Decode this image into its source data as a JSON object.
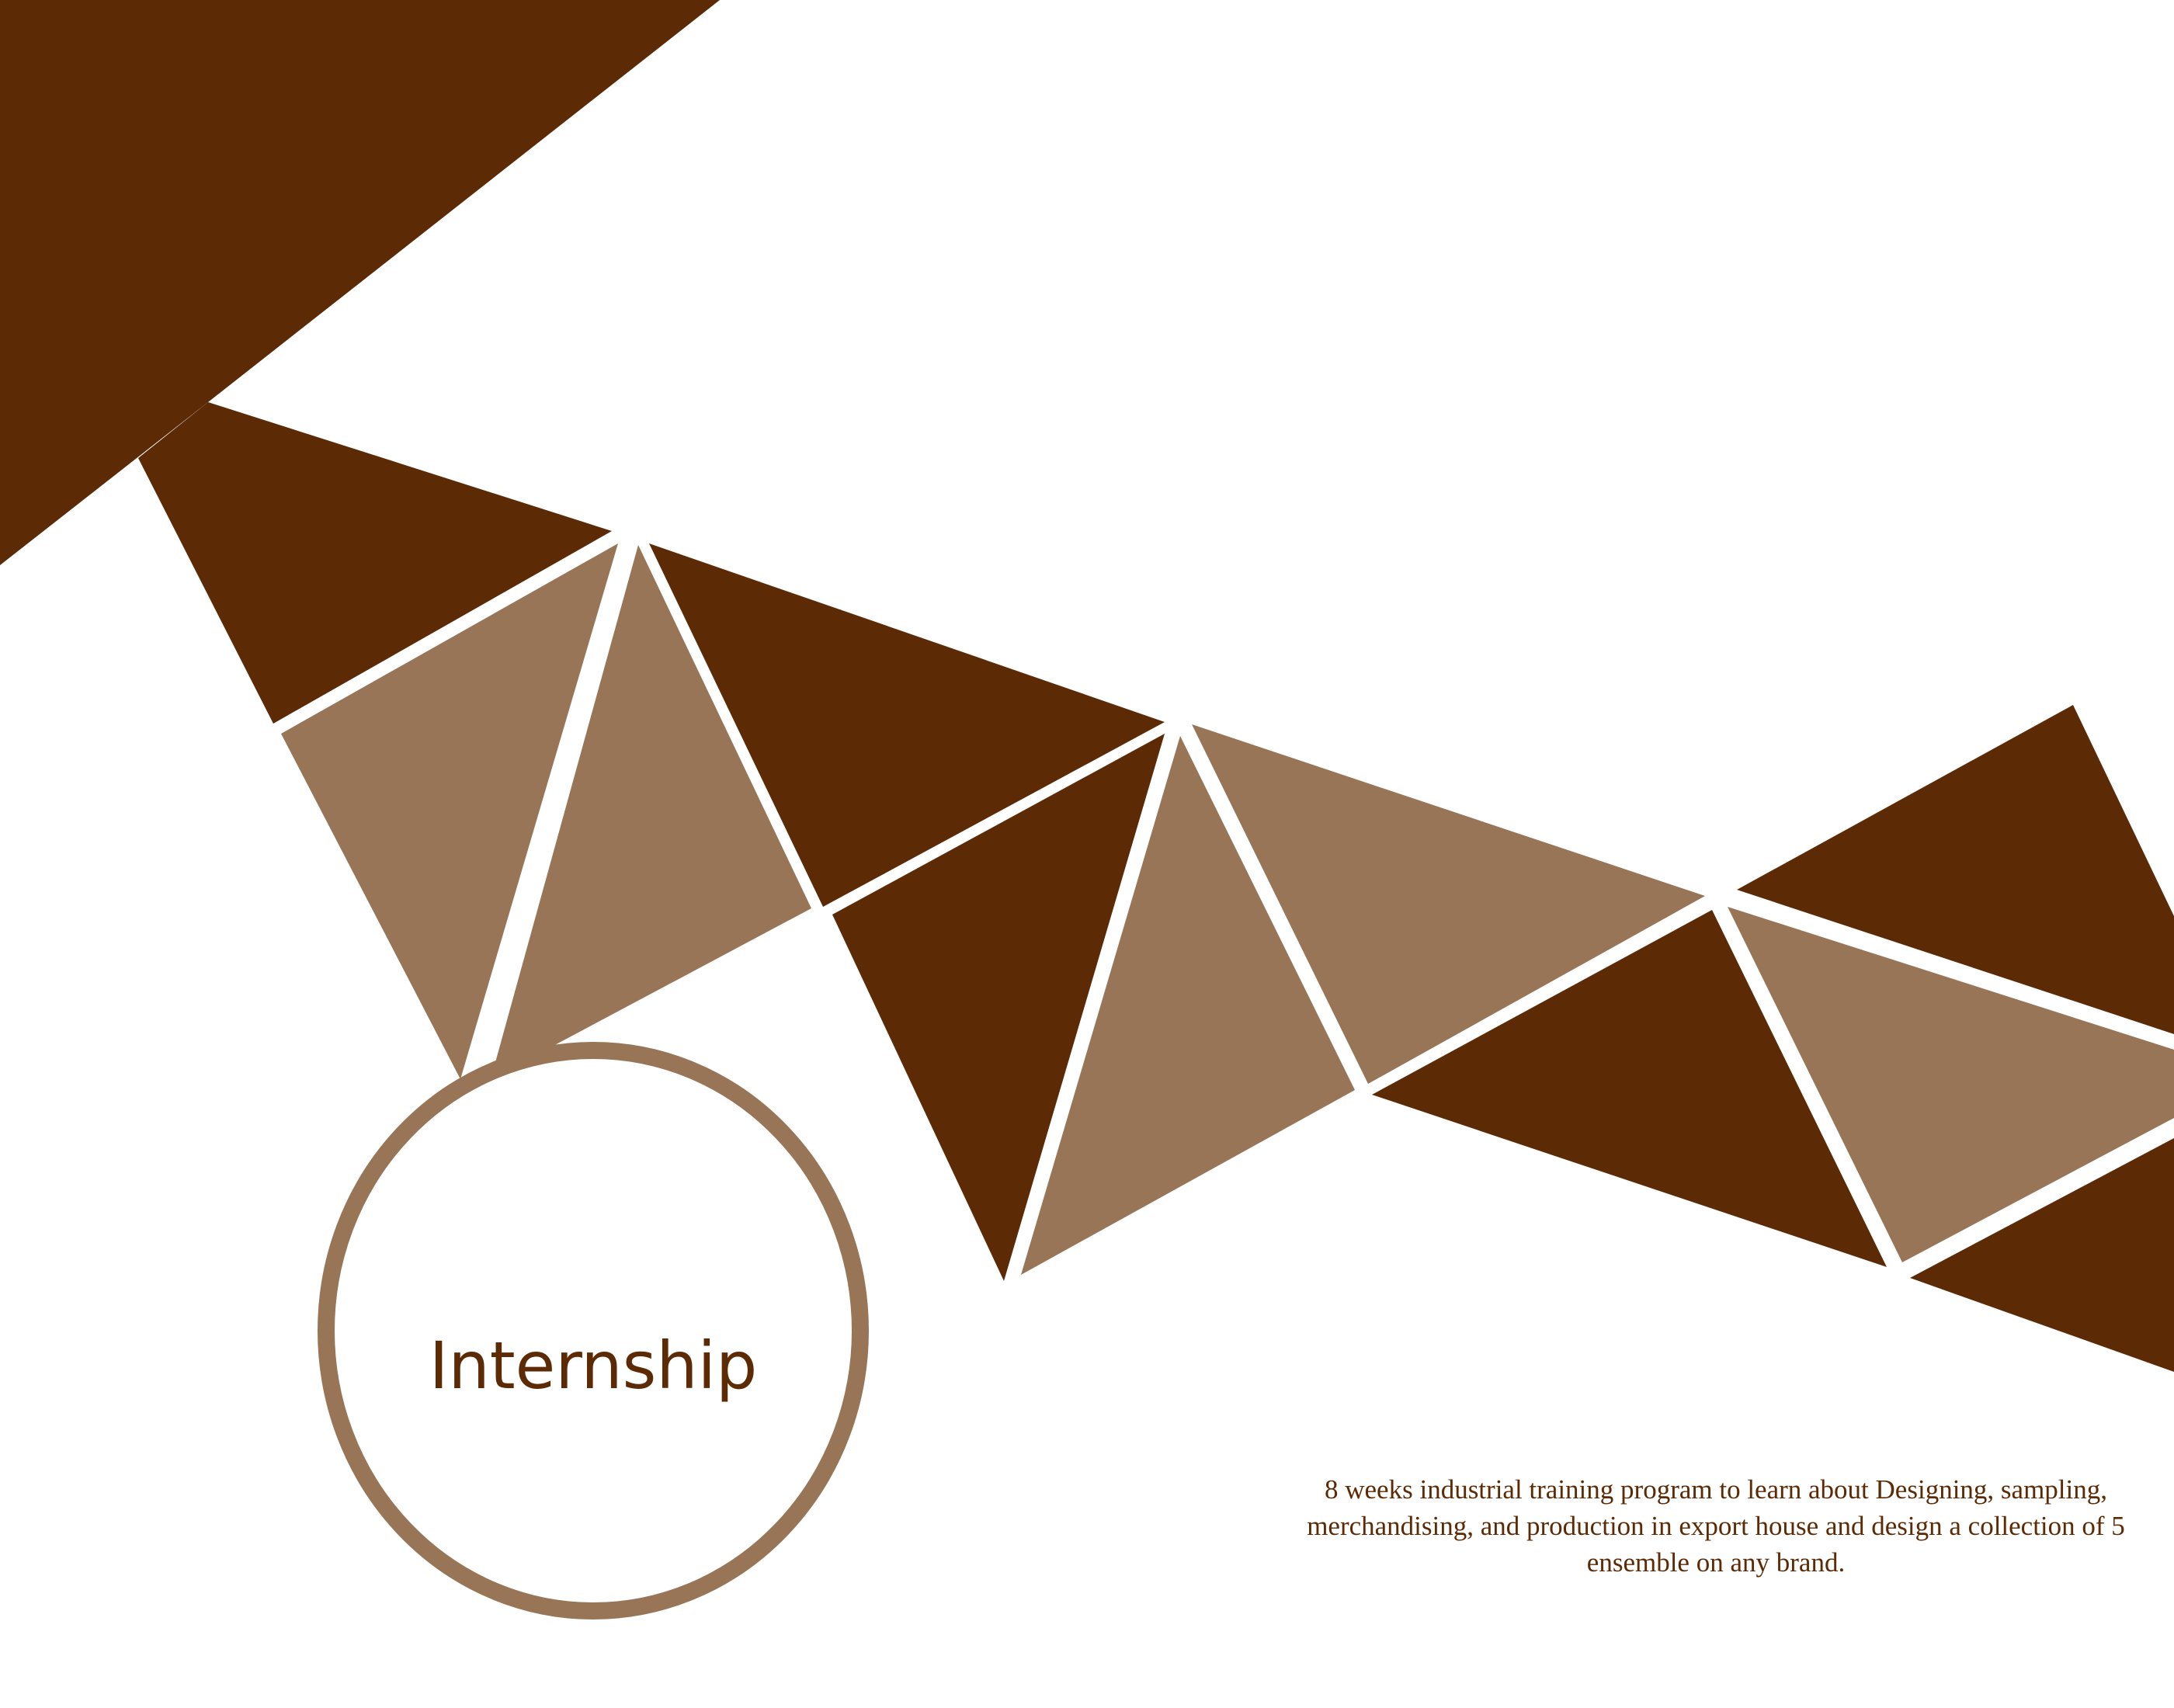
{
  "title": "Internship",
  "description": "8 weeks industrial training program to learn about Designing, sampling, merchandising, and production in export house and design a collection of 5 ensemble on any brand.",
  "colors": {
    "dark_brown": "#5c2a05",
    "light_brown": "#977556",
    "background": "#ffffff"
  }
}
